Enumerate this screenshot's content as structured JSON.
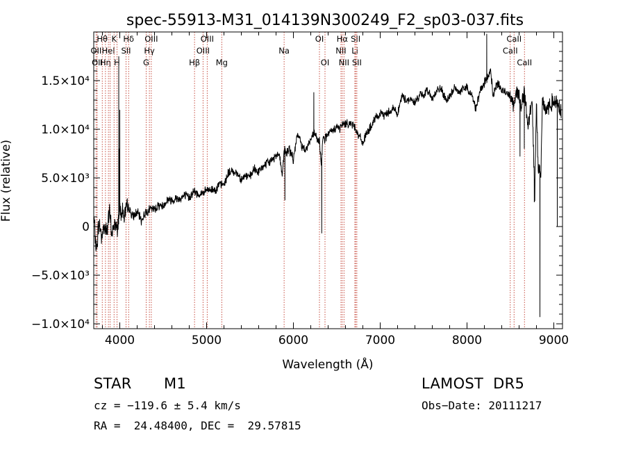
{
  "chart_data": {
    "type": "line",
    "title": "spec-55913-M31_014139N300249_F2_sp03-037.fits",
    "xlabel": "Wavelength (Å)",
    "ylabel": "Flux (relative)",
    "xlim": [
      3700,
      9100
    ],
    "ylim": [
      -10500,
      20000
    ],
    "x_ticks": [
      {
        "value": 4000,
        "label": "4000"
      },
      {
        "value": 5000,
        "label": "5000"
      },
      {
        "value": 6000,
        "label": "6000"
      },
      {
        "value": 7000,
        "label": "7000"
      },
      {
        "value": 8000,
        "label": "8000"
      },
      {
        "value": 9000,
        "label": "9000"
      }
    ],
    "y_ticks": [
      {
        "value": -10000,
        "label": "−1.0×10⁴"
      },
      {
        "value": -5000,
        "label": "−5.0×10³"
      },
      {
        "value": 0,
        "label": "0"
      },
      {
        "value": 5000,
        "label": "5.0×10³"
      },
      {
        "value": 10000,
        "label": "1.0×10⁴"
      },
      {
        "value": 15000,
        "label": "1.5×10⁴"
      }
    ],
    "spectrum": {
      "color": "#000000",
      "x": [
        3700,
        3730,
        3760,
        3790,
        3820,
        3850,
        3880,
        3910,
        3940,
        3970,
        4000,
        4050,
        4100,
        4150,
        4200,
        4250,
        4300,
        4350,
        4400,
        4450,
        4500,
        4550,
        4600,
        4650,
        4700,
        4750,
        4800,
        4850,
        4900,
        4950,
        5000,
        5050,
        5100,
        5150,
        5200,
        5250,
        5300,
        5350,
        5400,
        5450,
        5500,
        5550,
        5600,
        5650,
        5700,
        5750,
        5800,
        5830,
        5850,
        5870,
        5890,
        5900,
        5920,
        5950,
        6000,
        6050,
        6100,
        6150,
        6200,
        6250,
        6280,
        6300,
        6320,
        6340,
        6360,
        6400,
        6450,
        6500,
        6530,
        6563,
        6600,
        6650,
        6700,
        6750,
        6800,
        6850,
        6900,
        6950,
        7000,
        7050,
        7100,
        7150,
        7200,
        7250,
        7300,
        7350,
        7400,
        7450,
        7500,
        7550,
        7600,
        7650,
        7700,
        7750,
        7800,
        7850,
        7900,
        7950,
        8000,
        8050,
        8100,
        8150,
        8200,
        8240,
        8270,
        8300,
        8350,
        8400,
        8450,
        8500,
        8540,
        8580,
        8620,
        8660,
        8700,
        8750,
        8780,
        8800,
        8820,
        8850,
        8870,
        8900,
        8950,
        9000,
        9050,
        9080
      ],
      "y": [
        1000,
        -2500,
        500,
        -1000,
        0,
        -500,
        1500,
        -800,
        300,
        -300,
        2000,
        1200,
        2000,
        1000,
        1500,
        600,
        1500,
        1800,
        1800,
        2200,
        2100,
        2800,
        2700,
        2900,
        2900,
        3200,
        3000,
        3600,
        3300,
        3400,
        3700,
        3800,
        3800,
        4300,
        4300,
        5500,
        5700,
        5500,
        4900,
        5200,
        5100,
        5900,
        5600,
        6200,
        6500,
        6800,
        7300,
        7600,
        6800,
        5200,
        7300,
        8000,
        7500,
        8000,
        6900,
        9600,
        8200,
        8000,
        9000,
        9600,
        8700,
        8800,
        6300,
        9400,
        9000,
        9500,
        9800,
        10300,
        10000,
        10500,
        10600,
        10600,
        10400,
        9400,
        8600,
        9700,
        10300,
        11200,
        11500,
        11500,
        11800,
        12200,
        11600,
        13400,
        13000,
        13100,
        12700,
        13500,
        13500,
        14000,
        13200,
        13900,
        14200,
        13000,
        13200,
        14300,
        13800,
        14200,
        14300,
        13600,
        12200,
        13800,
        14800,
        15300,
        16200,
        13500,
        14700,
        14000,
        13800,
        13600,
        12500,
        14100,
        12500,
        13800,
        10300,
        13000,
        3000,
        13000,
        6000,
        5500,
        13500,
        11800,
        12400,
        13000,
        12700,
        12000
      ],
      "spikes": [
        {
          "x": 3988,
          "y": 17500
        },
        {
          "x": 3995,
          "y": 8000
        },
        {
          "x": 4000,
          "y": 12000
        },
        {
          "x": 5902,
          "y": 2700
        },
        {
          "x": 6235,
          "y": 13800
        },
        {
          "x": 6326,
          "y": -700
        },
        {
          "x": 8227,
          "y": 19800
        },
        {
          "x": 8610,
          "y": 7200
        },
        {
          "x": 8660,
          "y": 8000
        },
        {
          "x": 8775,
          "y": 2500
        },
        {
          "x": 8840,
          "y": -9300
        },
        {
          "x": 9040,
          "y": 0
        }
      ]
    },
    "line_markers": [
      {
        "x": 3798,
        "label": "Hθ",
        "row": 1
      },
      {
        "x": 3835,
        "label": "Hη",
        "row": 3
      },
      {
        "x": 3869,
        "label": "HeI",
        "row": 2
      },
      {
        "x": 3889,
        "label": "",
        "row": 0
      },
      {
        "x": 3934,
        "label": "K",
        "row": 1
      },
      {
        "x": 3968,
        "label": "H",
        "row": 3
      },
      {
        "x": 3727,
        "label": "OII",
        "row": 2
      },
      {
        "x": 3740,
        "label": "OII",
        "row": 3
      },
      {
        "x": 4102,
        "label": "Hδ",
        "row": 1
      },
      {
        "x": 4072,
        "label": "SII",
        "row": 2
      },
      {
        "x": 4304,
        "label": "G",
        "row": 3
      },
      {
        "x": 4341,
        "label": "Hγ",
        "row": 2
      },
      {
        "x": 4363,
        "label": "OIII",
        "row": 1
      },
      {
        "x": 4861,
        "label": "Hβ",
        "row": 3
      },
      {
        "x": 4959,
        "label": "OIII",
        "row": 2
      },
      {
        "x": 5007,
        "label": "OIII",
        "row": 1
      },
      {
        "x": 5175,
        "label": "Mg",
        "row": 3
      },
      {
        "x": 5893,
        "label": "Na",
        "row": 2
      },
      {
        "x": 6300,
        "label": "OI",
        "row": 1
      },
      {
        "x": 6364,
        "label": "OI",
        "row": 3
      },
      {
        "x": 6548,
        "label": "NII",
        "row": 2
      },
      {
        "x": 6563,
        "label": "Hα",
        "row": 1
      },
      {
        "x": 6583,
        "label": "NII",
        "row": 3
      },
      {
        "x": 6708,
        "label": "Li",
        "row": 2
      },
      {
        "x": 6717,
        "label": "SII",
        "row": 1
      },
      {
        "x": 6731,
        "label": "SII",
        "row": 3
      },
      {
        "x": 8498,
        "label": "CaII",
        "row": 2
      },
      {
        "x": 8542,
        "label": "CaII",
        "row": 1
      },
      {
        "x": 8662,
        "label": "CaII",
        "row": 3
      }
    ]
  },
  "info": {
    "object_class": "STAR",
    "subclass": "M1",
    "survey": "LAMOST  DR5",
    "cz": "cz = −119.6 ± 5.4 km/s",
    "obs_date": "Obs−Date: 20111217",
    "coords": "RA =  24.48400, DEC =  29.57815"
  }
}
